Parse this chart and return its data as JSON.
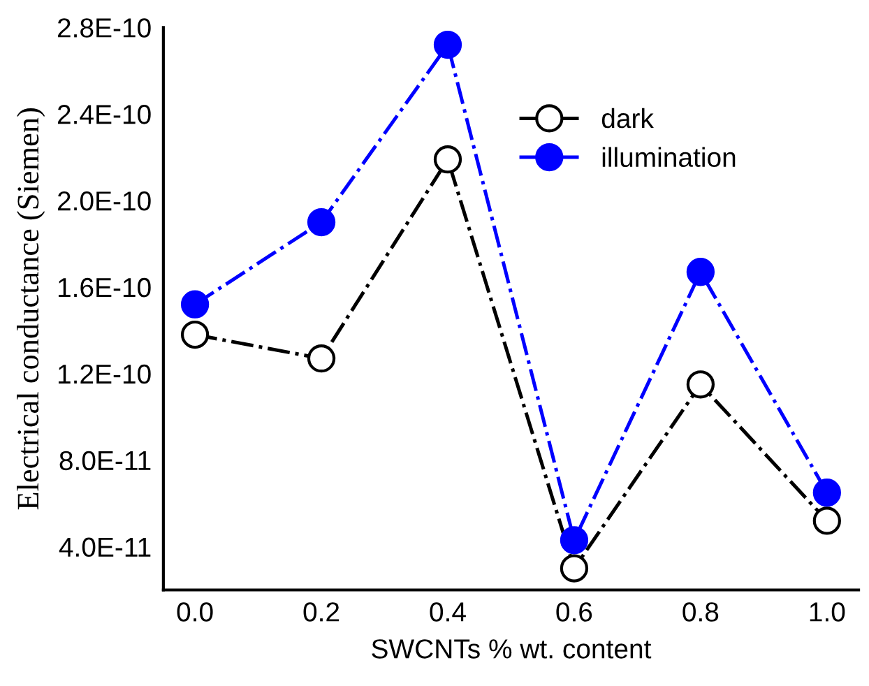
{
  "chart_data": {
    "type": "line",
    "xlabel": "SWCNTs % wt. content",
    "ylabel": "Electrical conductance (Siemen)",
    "x": [
      0.0,
      0.2,
      0.4,
      0.6,
      0.8,
      1.0
    ],
    "series": [
      {
        "name": "dark",
        "color": "#000000",
        "values": [
          1.38e-10,
          1.27e-10,
          2.19e-10,
          3e-11,
          1.15e-10,
          5.2e-11
        ]
      },
      {
        "name": "illumination",
        "color": "#0000ff",
        "values": [
          1.52e-10,
          1.9e-10,
          2.72e-10,
          4.3e-11,
          1.67e-10,
          6.5e-11
        ]
      }
    ],
    "xlim": [
      -0.05,
      1.05
    ],
    "ylim": [
      2e-11,
      2.8e-10
    ],
    "xticks": [
      {
        "value": 0,
        "label": "0.0"
      },
      {
        "value": 0.2,
        "label": "0.2"
      },
      {
        "value": 0.4,
        "label": "0.4"
      },
      {
        "value": 0.6,
        "label": "0.6"
      },
      {
        "value": 0.8,
        "label": "0.8"
      },
      {
        "value": 1,
        "label": "1.0"
      }
    ],
    "yticks": [
      {
        "value": 4e-11,
        "label": "4.0E-11"
      },
      {
        "value": 8e-11,
        "label": "8.0E-11"
      },
      {
        "value": 1.2e-10,
        "label": "1.2E-10"
      },
      {
        "value": 1.6e-10,
        "label": "1.6E-10"
      },
      {
        "value": 2e-10,
        "label": "2.0E-10"
      },
      {
        "value": 2.4e-10,
        "label": "2.4E-10"
      },
      {
        "value": 2.8e-10,
        "label": "2.8E-10"
      }
    ],
    "marker": "circle",
    "line_style": "dashdot",
    "legend": "top right",
    "grid": false
  }
}
